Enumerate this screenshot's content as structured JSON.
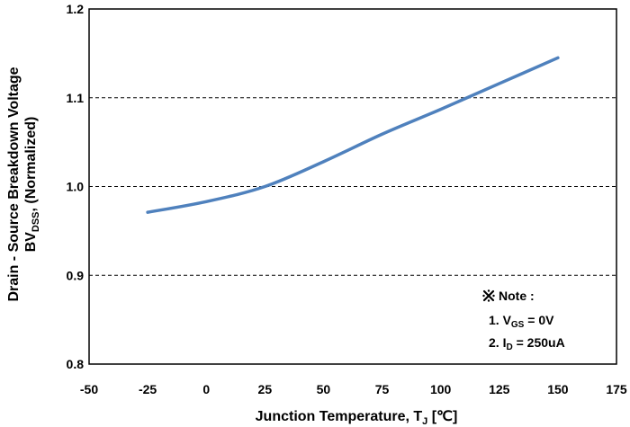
{
  "chart_data": {
    "type": "line",
    "xlabel": {
      "main": "Junction Temperature, T",
      "sub": "J",
      "unit": " [℃]"
    },
    "ylabel": {
      "line1": "Drain - Source Breakdown Voltage",
      "line2_main": "BV",
      "line2_sub": "DSS",
      "line2_rest": ", (Normalized)"
    },
    "xlim": [
      -50,
      175
    ],
    "ylim": [
      0.8,
      1.2
    ],
    "x_ticks": [
      -50,
      -25,
      0,
      25,
      50,
      75,
      100,
      125,
      150,
      175
    ],
    "y_ticks": [
      0.8,
      0.9,
      1.0,
      1.1,
      1.2
    ],
    "x_tick_labels": [
      "-50",
      "-25",
      "0",
      "25",
      "50",
      "75",
      "100",
      "125",
      "150",
      "175"
    ],
    "y_tick_labels": [
      "0.8",
      "0.9",
      "1.0",
      "1.1",
      "1.2"
    ],
    "grid": {
      "horizontal": true,
      "vertical": false,
      "style": "dashed"
    },
    "series": [
      {
        "color": "#4f81bd",
        "x": [
          -25,
          0,
          25,
          50,
          75,
          100,
          125,
          150
        ],
        "y": [
          0.971,
          0.983,
          1.0,
          1.028,
          1.059,
          1.087,
          1.116,
          1.145
        ]
      }
    ],
    "note": {
      "title": "Note :",
      "items": [
        {
          "prefix": "1. V",
          "sub": "GS",
          "rest": " = 0V"
        },
        {
          "prefix": "2. I",
          "sub": "D",
          "rest": " = 250uA"
        }
      ]
    }
  }
}
